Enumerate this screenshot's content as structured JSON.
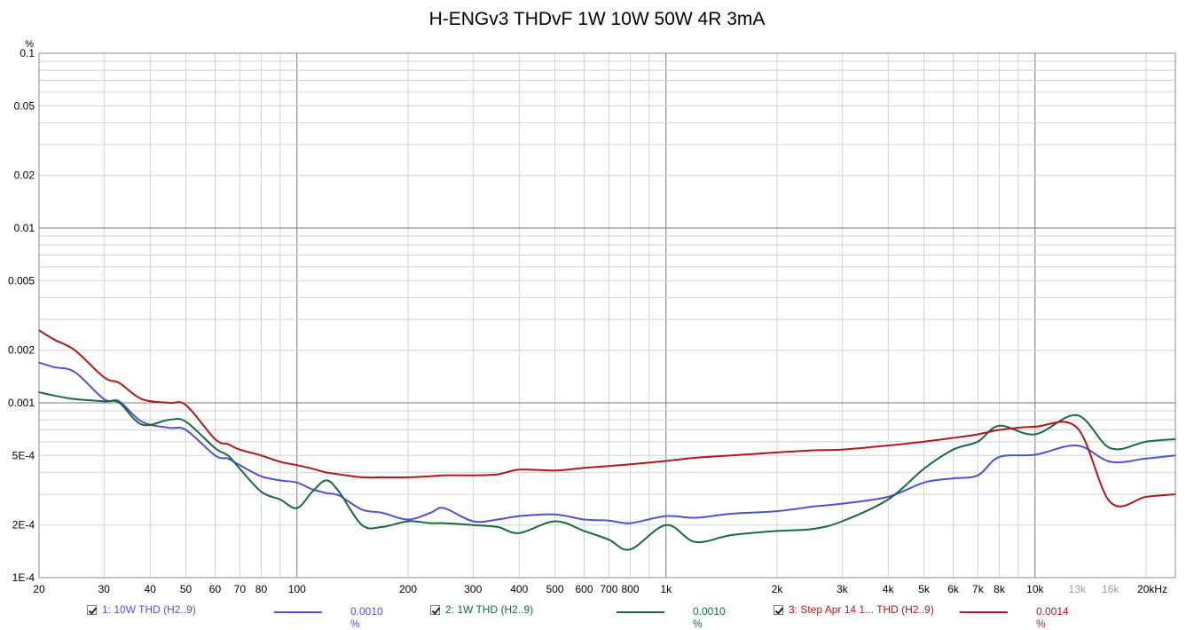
{
  "chart_data": {
    "type": "line",
    "title": "H-ENGv3 THDvF 1W 10W 50W 4R 3mA",
    "ylabel": "%",
    "x_scale": "log",
    "y_scale": "log",
    "xlim": [
      20,
      24000
    ],
    "ylim": [
      0.0001,
      0.1
    ],
    "grid": true,
    "x_ticks": [
      {
        "v": 20,
        "label": "20",
        "color": "#000000"
      },
      {
        "v": 30,
        "label": "30",
        "color": "#000000"
      },
      {
        "v": 40,
        "label": "40",
        "color": "#000000"
      },
      {
        "v": 50,
        "label": "50",
        "color": "#000000"
      },
      {
        "v": 60,
        "label": "60",
        "color": "#000000"
      },
      {
        "v": 70,
        "label": "70",
        "color": "#000000"
      },
      {
        "v": 80,
        "label": "80",
        "color": "#000000"
      },
      {
        "v": 100,
        "label": "100",
        "color": "#000000"
      },
      {
        "v": 200,
        "label": "200",
        "color": "#000000"
      },
      {
        "v": 300,
        "label": "300",
        "color": "#000000"
      },
      {
        "v": 400,
        "label": "400",
        "color": "#000000"
      },
      {
        "v": 500,
        "label": "500",
        "color": "#000000"
      },
      {
        "v": 600,
        "label": "600",
        "color": "#000000"
      },
      {
        "v": 700,
        "label": "700",
        "color": "#000000"
      },
      {
        "v": 800,
        "label": "800",
        "color": "#000000"
      },
      {
        "v": 1000,
        "label": "1k",
        "color": "#000000"
      },
      {
        "v": 2000,
        "label": "2k",
        "color": "#000000"
      },
      {
        "v": 3000,
        "label": "3k",
        "color": "#000000"
      },
      {
        "v": 4000,
        "label": "4k",
        "color": "#000000"
      },
      {
        "v": 5000,
        "label": "5k",
        "color": "#000000"
      },
      {
        "v": 6000,
        "label": "6k",
        "color": "#000000"
      },
      {
        "v": 7000,
        "label": "7k",
        "color": "#000000"
      },
      {
        "v": 8000,
        "label": "8k",
        "color": "#000000"
      },
      {
        "v": 10000,
        "label": "10k",
        "color": "#000000"
      },
      {
        "v": 13000,
        "label": "13k",
        "color": "#9a9a9a"
      },
      {
        "v": 16000,
        "label": "16k",
        "color": "#9a9a9a"
      },
      {
        "v": 20000,
        "label": "20kHz",
        "color": "#000000"
      }
    ],
    "x_major_lines": [
      100,
      1000,
      10000
    ],
    "y_ticks": [
      {
        "v": 0.1,
        "label": "0.1"
      },
      {
        "v": 0.05,
        "label": "0.05"
      },
      {
        "v": 0.02,
        "label": "0.02"
      },
      {
        "v": 0.01,
        "label": "0.01"
      },
      {
        "v": 0.005,
        "label": "0.005"
      },
      {
        "v": 0.002,
        "label": "0.002"
      },
      {
        "v": 0.001,
        "label": "0.001"
      },
      {
        "v": 0.0005,
        "label": "5E-4"
      },
      {
        "v": 0.0002,
        "label": "2E-4"
      },
      {
        "v": 0.0001,
        "label": "1E-4"
      }
    ],
    "y_major_lines": [
      0.1,
      0.01,
      0.001,
      0.0001
    ],
    "series": [
      {
        "name": "1: 10W THD (H2..9)",
        "color": "#5050d0",
        "legend_value": "0.0010 %",
        "x": [
          20,
          22,
          25,
          30,
          33,
          38,
          45,
          50,
          60,
          65,
          70,
          80,
          90,
          100,
          110,
          120,
          130,
          150,
          170,
          200,
          230,
          250,
          300,
          350,
          400,
          500,
          600,
          700,
          800,
          1000,
          1200,
          1500,
          2000,
          2500,
          3000,
          4000,
          5000,
          6000,
          7000,
          8000,
          10000,
          13000,
          16000,
          20000,
          24000
        ],
        "y": [
          0.0017,
          0.0016,
          0.0015,
          0.00105,
          0.00102,
          0.00078,
          0.00072,
          0.0007,
          0.0005,
          0.00048,
          0.00044,
          0.00038,
          0.00036,
          0.00035,
          0.00032,
          0.000305,
          0.000295,
          0.000245,
          0.000235,
          0.000215,
          0.000235,
          0.00025,
          0.00021,
          0.000215,
          0.000225,
          0.00023,
          0.000215,
          0.000212,
          0.000205,
          0.000225,
          0.00022,
          0.000232,
          0.00024,
          0.000255,
          0.000265,
          0.00029,
          0.00035,
          0.00037,
          0.000385,
          0.00049,
          0.000505,
          0.00057,
          0.00046,
          0.00048,
          0.0005
        ]
      },
      {
        "name": "2: 1W THD (H2..9)",
        "color": "#186a3c",
        "legend_value": "0.0010 %",
        "x": [
          20,
          22,
          25,
          30,
          33,
          38,
          45,
          50,
          60,
          65,
          70,
          80,
          90,
          100,
          110,
          120,
          130,
          150,
          170,
          200,
          230,
          250,
          300,
          350,
          400,
          500,
          600,
          700,
          800,
          1000,
          1200,
          1500,
          2000,
          2500,
          3000,
          4000,
          5000,
          6000,
          7000,
          8000,
          10000,
          13000,
          16000,
          20000,
          24000
        ],
        "y": [
          0.00115,
          0.0011,
          0.00105,
          0.00102,
          0.001,
          0.00075,
          0.0008,
          0.00078,
          0.00055,
          0.0005,
          0.00042,
          0.00031,
          0.00028,
          0.00025,
          0.00031,
          0.00036,
          0.00031,
          0.0002,
          0.000195,
          0.00021,
          0.000205,
          0.000205,
          0.0002,
          0.000195,
          0.00018,
          0.00021,
          0.000185,
          0.000165,
          0.000145,
          0.0002,
          0.00016,
          0.000175,
          0.000185,
          0.00019,
          0.00021,
          0.00028,
          0.00042,
          0.00054,
          0.0006,
          0.00074,
          0.00066,
          0.00085,
          0.00055,
          0.0006,
          0.00062
        ]
      },
      {
        "name": "3: Step Apr 14 1... THD (H2..9)",
        "color": "#b01818",
        "legend_value": "0.0014 %",
        "x": [
          20,
          22,
          25,
          30,
          33,
          38,
          45,
          50,
          60,
          65,
          70,
          80,
          90,
          100,
          110,
          120,
          130,
          150,
          170,
          200,
          230,
          250,
          300,
          350,
          400,
          500,
          600,
          700,
          800,
          1000,
          1200,
          1500,
          2000,
          2500,
          3000,
          4000,
          5000,
          6000,
          7000,
          8000,
          10000,
          13000,
          16000,
          20000,
          24000
        ],
        "y": [
          0.0026,
          0.0023,
          0.002,
          0.0014,
          0.0013,
          0.00105,
          0.001,
          0.00097,
          0.00062,
          0.00058,
          0.00054,
          0.0005,
          0.00046,
          0.00044,
          0.00042,
          0.0004,
          0.00039,
          0.000375,
          0.000375,
          0.000375,
          0.00038,
          0.000385,
          0.000385,
          0.00039,
          0.000415,
          0.00041,
          0.000425,
          0.000435,
          0.000445,
          0.000465,
          0.000485,
          0.0005,
          0.00052,
          0.000535,
          0.00054,
          0.00057,
          0.0006,
          0.00063,
          0.00066,
          0.0007,
          0.00073,
          0.00072,
          0.00027,
          0.00029,
          0.0003
        ]
      }
    ]
  }
}
